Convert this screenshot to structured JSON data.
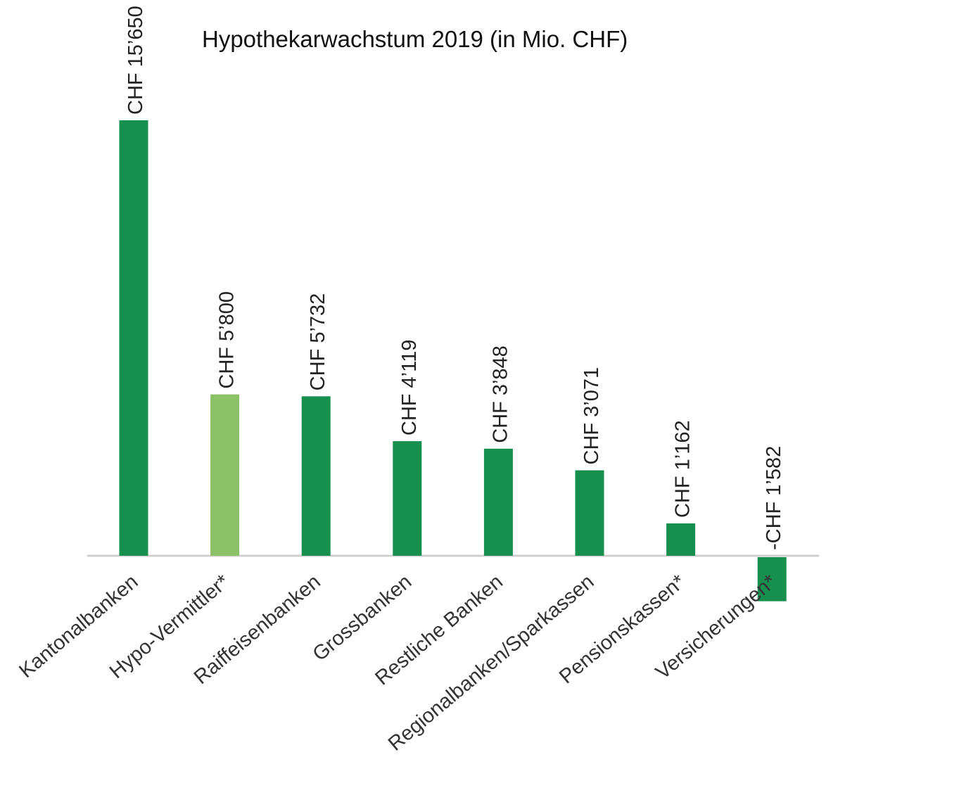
{
  "chart_data": {
    "type": "bar",
    "title": "Hypothekarwachstum 2019 (in Mio. CHF)",
    "xlabel": "",
    "ylabel": "",
    "grid": false,
    "legend": "none",
    "ylim": [
      -1582,
      15650
    ],
    "categories": [
      "Kantonalbanken",
      "Hypo-Vermittler*",
      "Raiffeisenbanken",
      "Grossbanken",
      "Restliche Banken",
      "Regionalbanken/Sparkassen",
      "Pensionskassen*",
      "Versicherungen*"
    ],
    "values": [
      15650,
      5800,
      5732,
      4119,
      3848,
      3071,
      1162,
      -1582
    ],
    "data_labels": [
      "CHF 15’650",
      "CHF 5’800",
      "CHF 5’732",
      "CHF 4’119",
      "CHF 3’848",
      "CHF 3’071",
      "CHF 1’162",
      "-CHF 1’582"
    ],
    "colors": {
      "default": "#178f4e",
      "highlight": "#8cc168",
      "axis": "#d0d0d0"
    },
    "highlight_categories": [
      "Hypo-Vermittler*"
    ]
  }
}
